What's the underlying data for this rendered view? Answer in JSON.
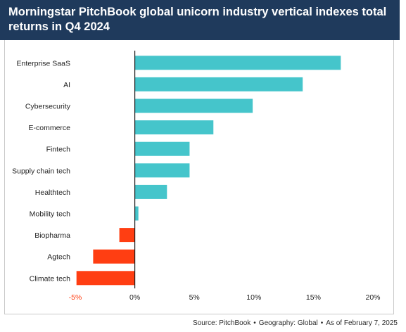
{
  "title": "Morningstar PitchBook global unicorn industry vertical indexes total returns in Q4 2024",
  "footer": {
    "source": "Source: PitchBook",
    "geography": "Geography: Global",
    "date": "As of February 7, 2025"
  },
  "colors": {
    "positive": "#45c5cb",
    "negative": "#ff3e12",
    "negative_tick": "#ff3e12",
    "axis": "#1a1a1a",
    "text": "#222222"
  },
  "chart_data": {
    "type": "bar",
    "orientation": "horizontal",
    "title": "Morningstar PitchBook global unicorn industry vertical indexes total returns in Q4 2024",
    "categories": [
      "Enterprise SaaS",
      "AI",
      "Cybersecurity",
      "E-commerce",
      "Fintech",
      "Supply chain tech",
      "Healthtech",
      "Mobility tech",
      "Biopharma",
      "Agtech",
      "Climate tech"
    ],
    "values": [
      17.3,
      14.1,
      9.9,
      6.6,
      4.6,
      4.6,
      2.7,
      0.3,
      -1.3,
      -3.5,
      -4.9
    ],
    "xlim": [
      -5,
      20
    ],
    "xticks": [
      -5,
      0,
      5,
      10,
      15,
      20
    ],
    "xtick_labels": [
      "-5%",
      "0%",
      "5%",
      "10%",
      "15%",
      "20%"
    ],
    "grid": false,
    "legend": "none"
  }
}
